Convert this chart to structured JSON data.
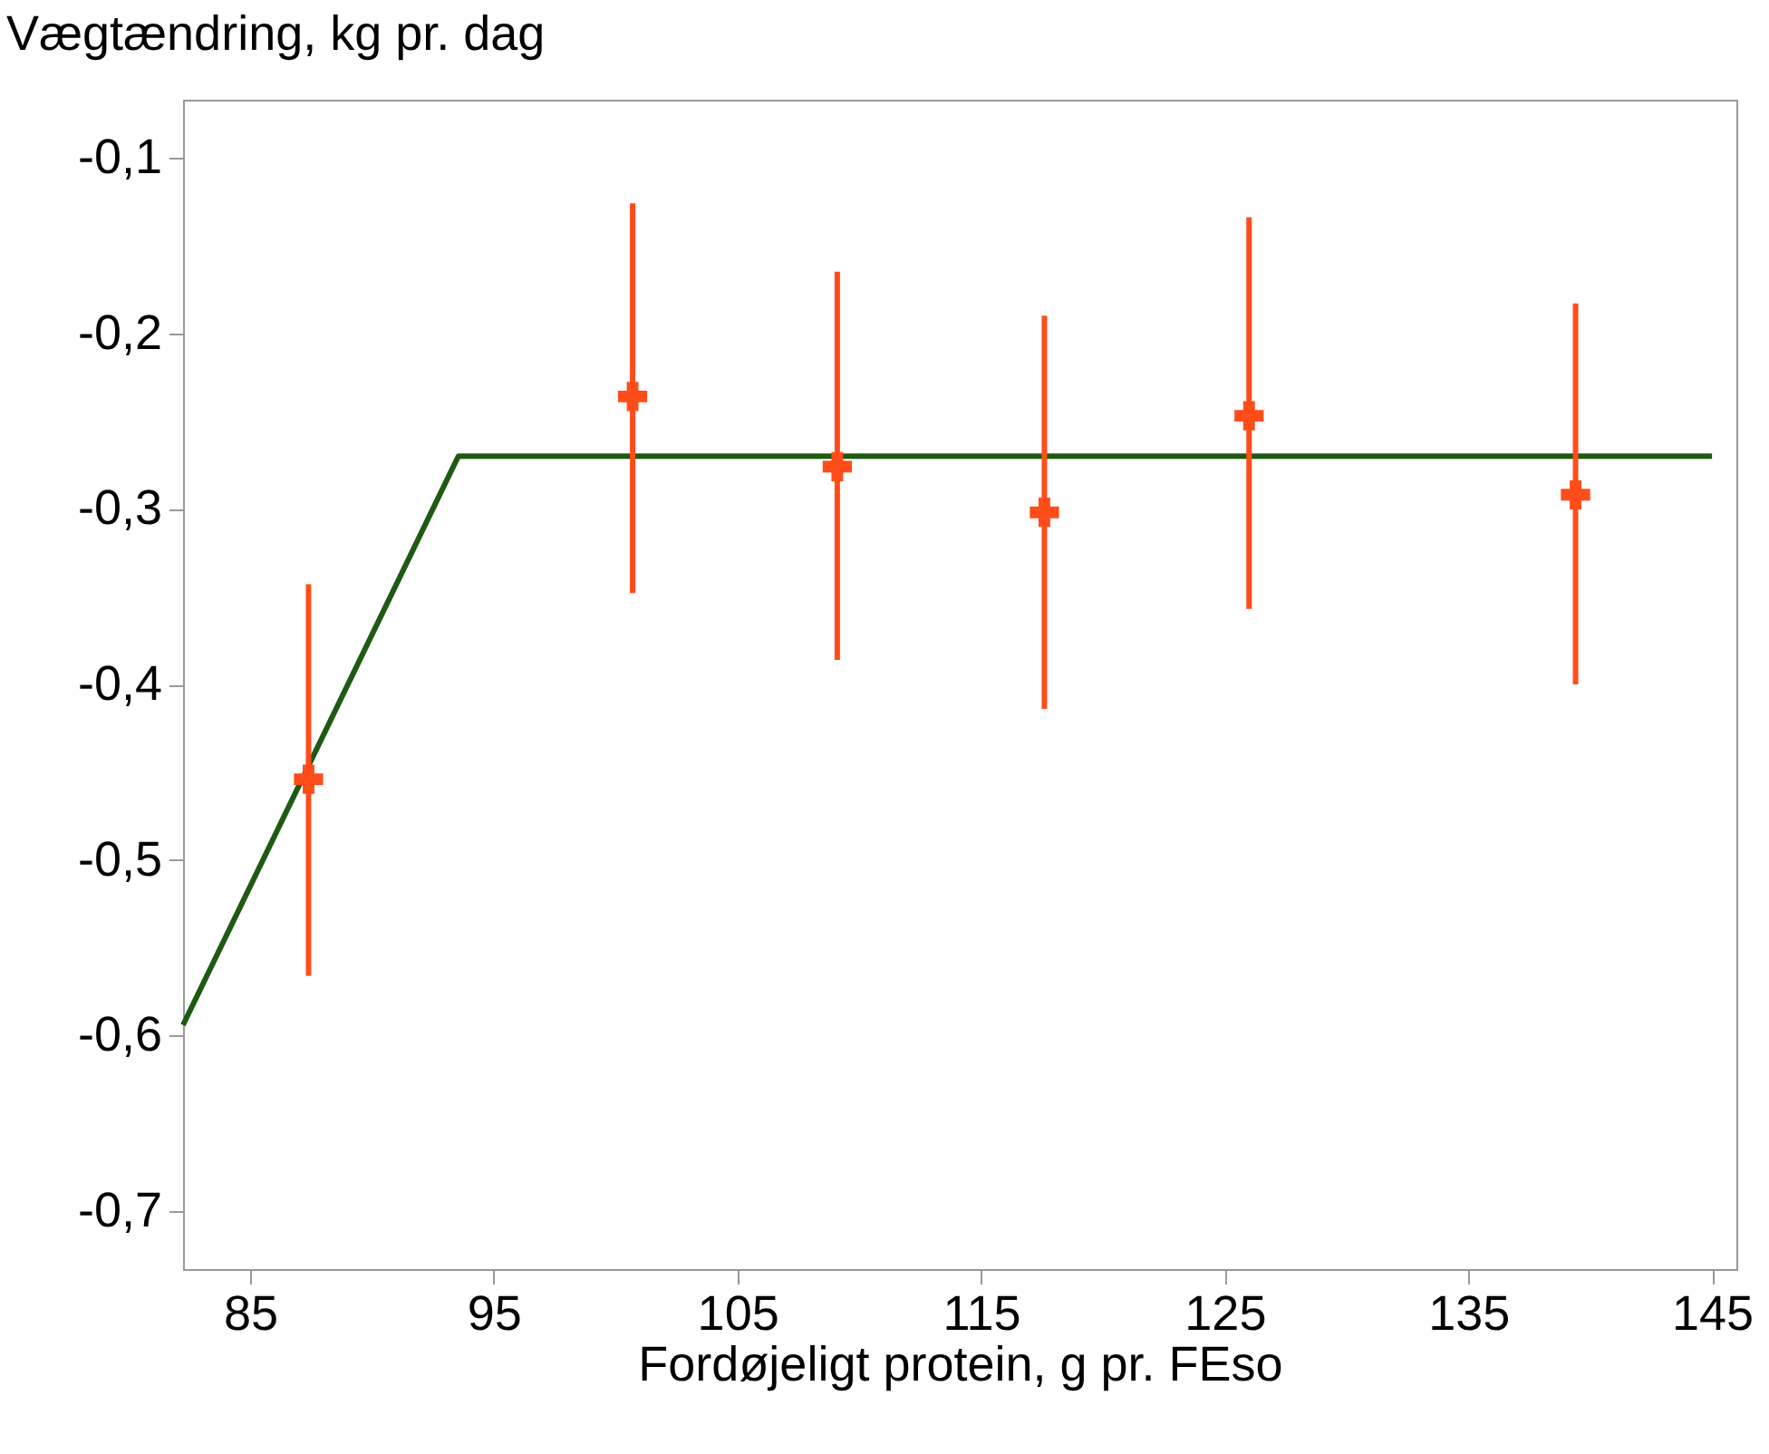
{
  "chart_data": {
    "type": "scatter",
    "xlabel": "Fordøjeligt protein, g pr. FEso",
    "ylabel": "Vægtændring, kg pr. dag",
    "xlim": [
      82.25,
      146
    ],
    "xticks": [
      85,
      95,
      105,
      115,
      125,
      135,
      145
    ],
    "ylim": [
      -0.733,
      -0.067
    ],
    "yticks": [
      {
        "value": -0.1,
        "label": "-0,1"
      },
      {
        "value": -0.2,
        "label": "-0,2"
      },
      {
        "value": -0.3,
        "label": "-0,3"
      },
      {
        "value": -0.4,
        "label": "-0,4"
      },
      {
        "value": -0.5,
        "label": "-0,5"
      },
      {
        "value": -0.6,
        "label": "-0,6"
      },
      {
        "value": -0.7,
        "label": "-0,7"
      }
    ],
    "grid": false,
    "series": [
      {
        "type": "line",
        "color": "#1f5a12",
        "x": [
          82.25,
          93.55,
          145
        ],
        "values": [
          -0.594,
          -0.27,
          -0.27
        ],
        "marker": "none",
        "line_style": "solid"
      },
      {
        "color": "#ff4d1a",
        "marker": "cross",
        "x": [
          87.4,
          100.7,
          109.1,
          117.6,
          126.0,
          139.4
        ],
        "values": [
          -0.454,
          -0.236,
          -0.276,
          -0.302,
          -0.247,
          -0.292
        ],
        "errors": [
          [
            -0.566,
            -0.343
          ],
          [
            -0.348,
            -0.126
          ],
          [
            -0.386,
            -0.165
          ],
          [
            -0.414,
            -0.19
          ],
          [
            -0.357,
            -0.134
          ],
          [
            -0.4,
            -0.183
          ]
        ]
      }
    ]
  }
}
